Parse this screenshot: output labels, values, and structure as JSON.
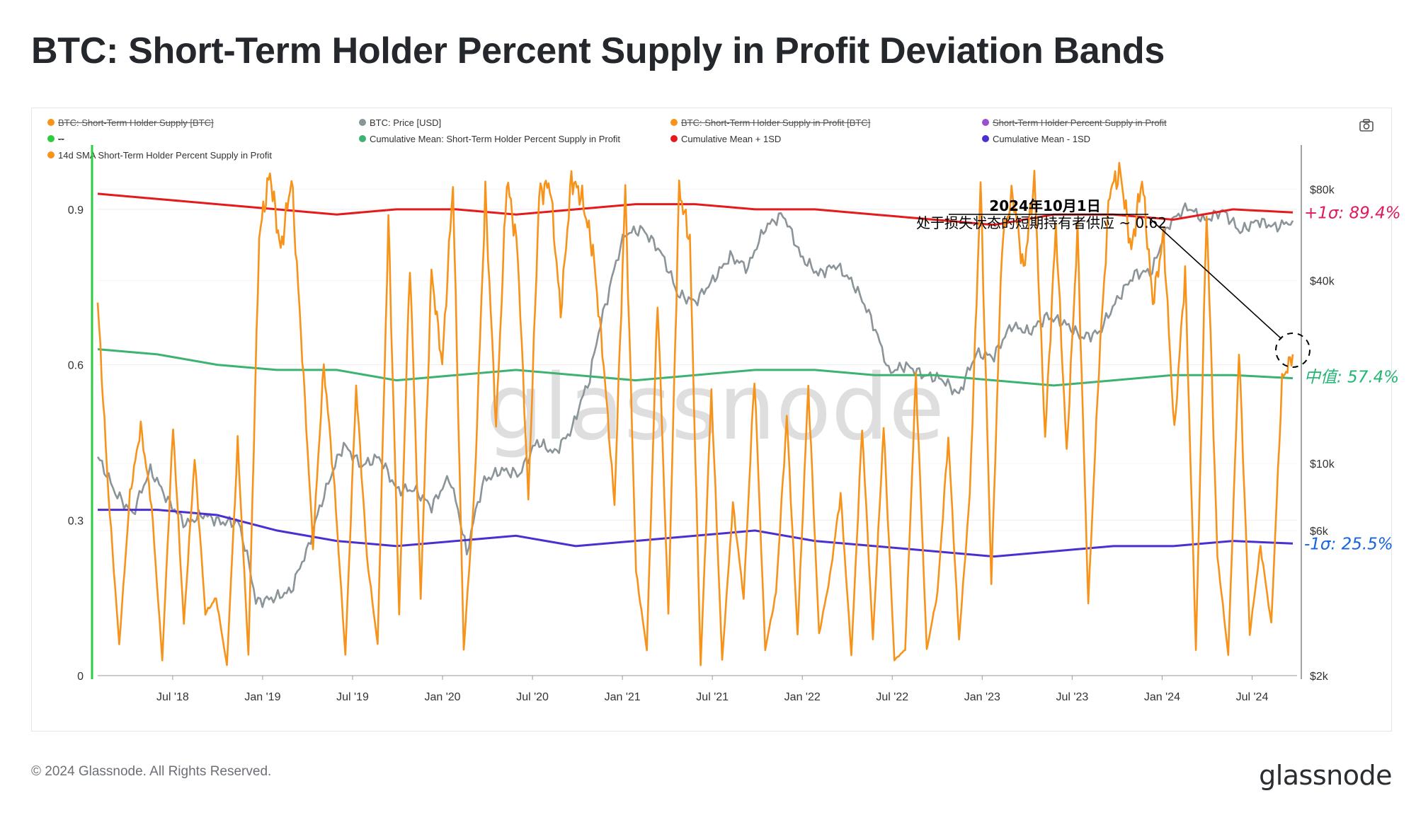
{
  "title": "BTC: Short-Term Holder Percent Supply in Profit Deviation Bands",
  "legend": [
    {
      "label": "BTC: Short-Term Holder Supply [BTC]",
      "color": "#f7931a",
      "off": true
    },
    {
      "label": "BTC: Price [USD]",
      "color": "#8a9499",
      "off": false
    },
    {
      "label": "BTC: Short-Term Holder Supply in Profit [BTC]",
      "color": "#f7931a",
      "off": true
    },
    {
      "label": "Short-Term Holder Percent Supply in Profit",
      "color": "#9b4dca",
      "off": true
    },
    {
      "label": "--",
      "color": "#2ecc40",
      "off": true
    },
    {
      "label": "Cumulative Mean: Short-Term Holder Percent Supply in Profit",
      "color": "#3cb371",
      "off": false
    },
    {
      "label": "Cumulative Mean + 1SD",
      "color": "#e41a1c",
      "off": false
    },
    {
      "label": "Cumulative Mean - 1SD",
      "color": "#4b2fd1",
      "off": false
    },
    {
      "label": "14d SMA Short-Term Holder Percent Supply in Profit",
      "color": "#f7931a",
      "off": false
    }
  ],
  "annotation": {
    "date": "2024年10月1日",
    "text": "处于损失状态的短期持有者供应 ~ 0.62",
    "upper_label": "+1σ: 89.4%",
    "mean_label": "中值: 57.4%",
    "lower_label": "-1σ: 25.5%"
  },
  "watermark": "glassnode",
  "footer": {
    "copyright": "© 2024 Glassnode. All Rights Reserved.",
    "logo": "glassnode"
  },
  "colors": {
    "sma": "#f7931a",
    "price": "#8a9499",
    "mean": "#3cb371",
    "upper": "#e41a1c",
    "lower": "#4b2fd1",
    "upper_label": "#e0195c",
    "mean_label": "#22b573",
    "lower_label": "#1565e0"
  },
  "chart_data": {
    "type": "line",
    "x_start": "2018-02",
    "x_end": "2024-10",
    "x_ticks": [
      "Jul '18",
      "Jan '19",
      "Jul '19",
      "Jan '20",
      "Jul '20",
      "Jan '21",
      "Jul '21",
      "Jan '22",
      "Jul '22",
      "Jan '23",
      "Jul '23",
      "Jan '24",
      "Jul '24"
    ],
    "y_left": {
      "ticks": [
        0,
        0.3,
        0.6,
        0.9
      ],
      "tick_labels": [
        "0",
        "0.3",
        "0.6",
        "0.9"
      ],
      "range": [
        0,
        1.02
      ]
    },
    "y_right": {
      "scale": "log",
      "ticks": [
        2000,
        6000,
        10000,
        40000,
        80000
      ],
      "tick_labels": [
        "$2k",
        "$6k",
        "$10k",
        "$40k",
        "$80k"
      ],
      "range": [
        2000,
        110000
      ]
    },
    "series": [
      {
        "name": "14d SMA Short-Term Holder Percent Supply in Profit",
        "axis": "left",
        "values": [
          0.72,
          0.35,
          0.06,
          0.35,
          0.48,
          0.33,
          0.03,
          0.48,
          0.1,
          0.42,
          0.12,
          0.15,
          0.02,
          0.45,
          0.04,
          0.85,
          0.97,
          0.82,
          0.96,
          0.62,
          0.25,
          0.6,
          0.36,
          0.04,
          0.56,
          0.23,
          0.06,
          0.88,
          0.12,
          0.8,
          0.15,
          0.78,
          0.6,
          0.95,
          0.05,
          0.36,
          0.93,
          0.48,
          0.96,
          0.82,
          0.34,
          0.93,
          0.95,
          0.7,
          0.96,
          0.92,
          0.82,
          0.6,
          0.33,
          0.94,
          0.2,
          0.05,
          0.73,
          0.12,
          0.94,
          0.84,
          0.02,
          0.55,
          0.03,
          0.33,
          0.15,
          0.58,
          0.05,
          0.16,
          0.5,
          0.08,
          0.56,
          0.08,
          0.19,
          0.35,
          0.04,
          0.48,
          0.07,
          0.48,
          0.03,
          0.05,
          0.58,
          0.05,
          0.16,
          0.46,
          0.07,
          0.35,
          0.95,
          0.18,
          0.84,
          0.93,
          0.78,
          0.96,
          0.46,
          0.87,
          0.43,
          0.86,
          0.14,
          0.6,
          0.94,
          0.97,
          0.82,
          0.96,
          0.72,
          0.85,
          0.47,
          0.78,
          0.05,
          0.9,
          0.23,
          0.04,
          0.63,
          0.08,
          0.25,
          0.1,
          0.57,
          0.62
        ]
      },
      {
        "name": "BTC: Price [USD]",
        "axis": "right",
        "scale": "log",
        "values": [
          10500,
          8000,
          6800,
          9500,
          7500,
          6300,
          6800,
          6400,
          6400,
          3500,
          3600,
          3800,
          5300,
          8200,
          11500,
          9800,
          10500,
          8200,
          8200,
          7200,
          9000,
          5000,
          8800,
          9500,
          9200,
          11800,
          10800,
          13000,
          19000,
          35000,
          57000,
          59000,
          50000,
          36000,
          34000,
          40000,
          48000,
          44000,
          60000,
          66000,
          48000,
          42000,
          45000,
          39000,
          30000,
          20000,
          21000,
          19500,
          19000,
          16800,
          23000,
          22500,
          28500,
          27000,
          30500,
          29000,
          26000,
          27000,
          34500,
          42000,
          43000,
          62000,
          70000,
          63000,
          68000,
          58000,
          63000,
          60000,
          63000
        ]
      },
      {
        "name": "Cumulative Mean: Short-Term Holder Percent Supply in Profit",
        "axis": "left",
        "values": [
          0.63,
          0.62,
          0.6,
          0.59,
          0.59,
          0.57,
          0.58,
          0.59,
          0.58,
          0.57,
          0.58,
          0.59,
          0.59,
          0.58,
          0.58,
          0.57,
          0.56,
          0.57,
          0.58,
          0.58,
          0.574
        ]
      },
      {
        "name": "Cumulative Mean + 1SD",
        "axis": "left",
        "values": [
          0.93,
          0.92,
          0.91,
          0.9,
          0.89,
          0.9,
          0.9,
          0.89,
          0.9,
          0.91,
          0.91,
          0.9,
          0.9,
          0.89,
          0.88,
          0.87,
          0.89,
          0.89,
          0.88,
          0.9,
          0.894
        ]
      },
      {
        "name": "Cumulative Mean - 1SD",
        "axis": "left",
        "values": [
          0.32,
          0.32,
          0.31,
          0.28,
          0.26,
          0.25,
          0.26,
          0.27,
          0.25,
          0.26,
          0.27,
          0.28,
          0.26,
          0.25,
          0.24,
          0.23,
          0.24,
          0.25,
          0.25,
          0.26,
          0.255
        ]
      }
    ],
    "annotation_point": {
      "date": "2024-10-01",
      "value": 0.62
    }
  }
}
